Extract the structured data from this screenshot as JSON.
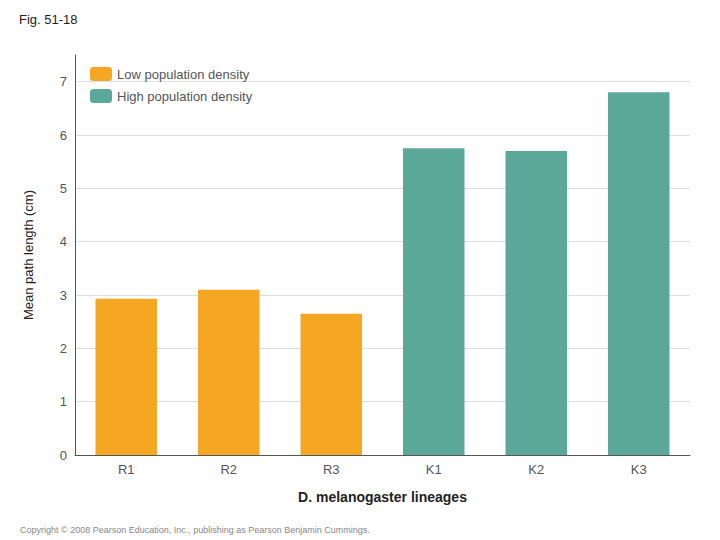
{
  "chart_data": {
    "type": "bar",
    "title": "Fig. 51-18",
    "xlabel": "D. melanogaster lineages",
    "ylabel": "Mean path length (cm)",
    "categories": [
      "R1",
      "R2",
      "R3",
      "K1",
      "K2",
      "K3"
    ],
    "series": [
      {
        "name": "Low population density",
        "color": "#F5A623",
        "values": [
          2.93,
          3.1,
          2.65,
          null,
          null,
          null
        ]
      },
      {
        "name": "High population density",
        "color": "#5BA89A",
        "values": [
          null,
          null,
          null,
          5.75,
          5.7,
          6.8
        ]
      }
    ],
    "ylim": [
      0,
      7.5
    ],
    "yticks": [
      0,
      1,
      2,
      3,
      4,
      5,
      6,
      7
    ],
    "grid": true,
    "legend": "upper left",
    "annotations": [
      "Copyright © 2008 Pearson Education, Inc., publishing as Pearson Benjamin Cummings."
    ]
  }
}
